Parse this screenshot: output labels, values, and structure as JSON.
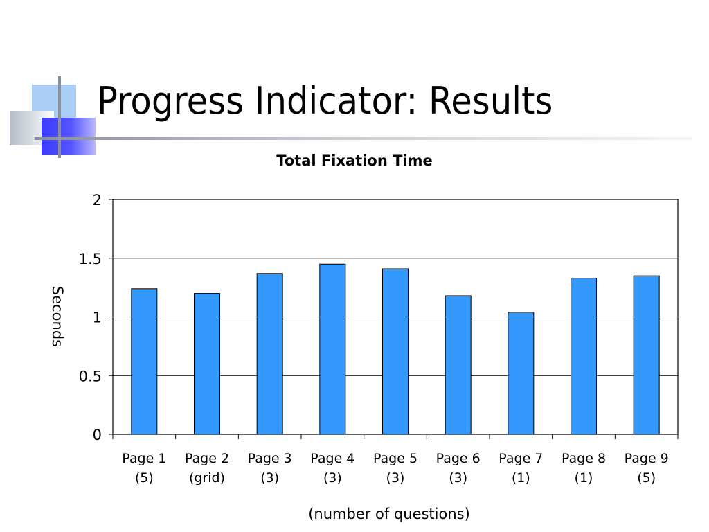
{
  "slide": {
    "title": "Progress Indicator: Results"
  },
  "chart_data": {
    "type": "bar",
    "title": "Total Fixation Time",
    "xlabel": "(number of questions)",
    "ylabel": "Seconds",
    "categories": [
      [
        "Page 1",
        "(5)"
      ],
      [
        "Page 2",
        "(grid)"
      ],
      [
        "Page 3",
        "(3)"
      ],
      [
        "Page 4",
        "(3)"
      ],
      [
        "Page 5",
        "(3)"
      ],
      [
        "Page 6",
        "(3)"
      ],
      [
        "Page 7",
        "(1)"
      ],
      [
        "Page 8",
        "(1)"
      ],
      [
        "Page 9",
        "(5)"
      ]
    ],
    "values": [
      1.24,
      1.2,
      1.37,
      1.45,
      1.41,
      1.18,
      1.04,
      1.33,
      1.35
    ],
    "ylim": [
      0,
      2
    ],
    "yticks": [
      "0",
      "0.5",
      "1",
      "1.5",
      "2"
    ],
    "grid": true,
    "legend": "none",
    "bar_color": "#3399ff"
  }
}
